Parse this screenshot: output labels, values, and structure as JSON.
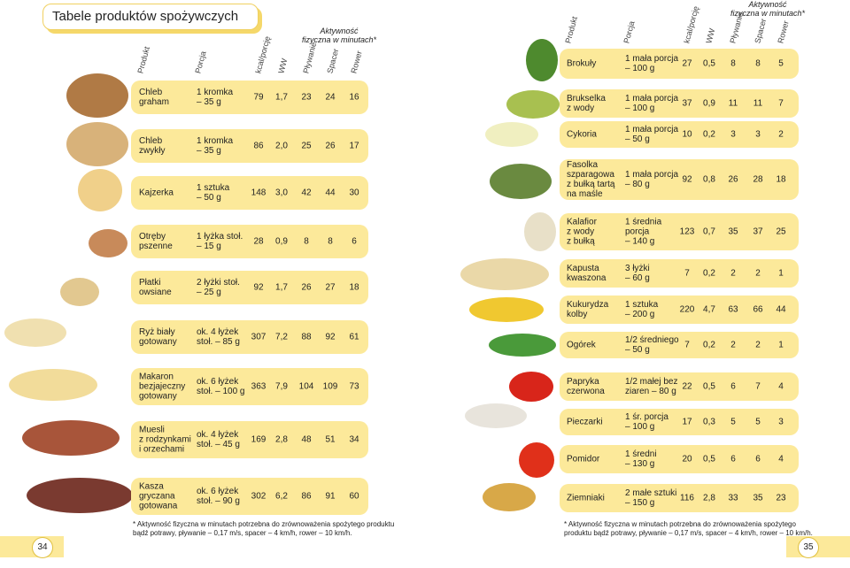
{
  "title": "Tabele produktów spożywczych",
  "activity_header": "Aktywność\nfizyczna w minutach*",
  "left": {
    "headers": [
      "Produkt",
      "Porcja",
      "kcal/porcję",
      "WW",
      "Pływanie",
      "Spacer",
      "Rower"
    ],
    "rows": [
      [
        "Chleb\ngraham",
        "1 kromka\n– 35 g",
        "79",
        "1,7",
        "23",
        "24",
        "16"
      ],
      [
        "Chleb\nzwykły",
        "1 kromka\n– 35 g",
        "86",
        "2,0",
        "25",
        "26",
        "17"
      ],
      [
        "Kajzerka",
        "1 sztuka\n– 50 g",
        "148",
        "3,0",
        "42",
        "44",
        "30"
      ],
      [
        "Otręby\npszenne",
        "1 łyżka stoł.\n– 15 g",
        "28",
        "0,9",
        "8",
        "8",
        "6"
      ],
      [
        "Płatki\nowsiane",
        "2 łyżki stoł.\n– 25 g",
        "92",
        "1,7",
        "26",
        "27",
        "18"
      ],
      [
        "Ryż biały\ngotowany",
        "ok. 4 łyżek\nstoł. – 85 g",
        "307",
        "7,2",
        "88",
        "92",
        "61"
      ],
      [
        "Makaron\nbezjajeczny\ngotowany",
        "ok. 6 łyżek\nstoł. – 100 g",
        "363",
        "7,9",
        "104",
        "109",
        "73"
      ],
      [
        "Muesli\nz rodzynkami\ni orzechami",
        "ok. 4 łyżek\nstoł. – 45 g",
        "169",
        "2,8",
        "48",
        "51",
        "34"
      ],
      [
        "Kasza\ngryczana\ngotowana",
        "ok. 6 łyżek\nstoł. – 90 g",
        "302",
        "6,2",
        "86",
        "91",
        "60"
      ]
    ],
    "footnote": "* Aktywność fizyczna w minutach potrzebna do zrównoważenia spożytego produktu\nbądź potrawy, pływanie – 0,17 m/s, spacer – 4 km/h, rower – 10 km/h.",
    "page_number": "34"
  },
  "right": {
    "headers": [
      "Produkt",
      "Porcja",
      "kcal/porcję",
      "WW",
      "Pływanie",
      "Spacer",
      "Rower"
    ],
    "rows": [
      [
        "Brokuły",
        "1 mała porcja\n– 100 g",
        "27",
        "0,5",
        "8",
        "8",
        "5"
      ],
      [
        "Brukselka\nz wody",
        "1 mała porcja\n– 100 g",
        "37",
        "0,9",
        "11",
        "11",
        "7"
      ],
      [
        "Cykoria",
        "1 mała porcja\n– 50 g",
        "10",
        "0,2",
        "3",
        "3",
        "2"
      ],
      [
        "Fasolka\nszparagowa\nz bułką tartą\nna maśle",
        "1 mała porcja\n– 80 g",
        "92",
        "0,8",
        "26",
        "28",
        "18"
      ],
      [
        "Kalafior\nz wody\nz bułką",
        "1 średnia\nporcja\n– 140 g",
        "123",
        "0,7",
        "35",
        "37",
        "25"
      ],
      [
        "Kapusta\nkwaszona",
        "3 łyżki\n– 60 g",
        "7",
        "0,2",
        "2",
        "2",
        "1"
      ],
      [
        "Kukurydza\nkolby",
        "1 sztuka\n– 200 g",
        "220",
        "4,7",
        "63",
        "66",
        "44"
      ],
      [
        "Ogórek",
        "1/2 średniego\n– 50 g",
        "7",
        "0,2",
        "2",
        "2",
        "1"
      ],
      [
        "Papryka\nczerwona",
        "1/2 małej bez\nziaren – 80 g",
        "22",
        "0,5",
        "6",
        "7",
        "4"
      ],
      [
        "Pieczarki",
        "1 śr. porcja\n– 100 g",
        "17",
        "0,3",
        "5",
        "5",
        "3"
      ],
      [
        "Pomidor",
        "1 średni\n– 130 g",
        "20",
        "0,5",
        "6",
        "6",
        "4"
      ],
      [
        "Ziemniaki",
        "2 małe sztuki\n– 150 g",
        "116",
        "2,8",
        "33",
        "35",
        "23"
      ]
    ],
    "footnote": "* Aktywność fizyczna w minutach potrzebna do zrównoważenia spożytego\nproduktu bądź potrawy, pływanie – 0,17 m/s, spacer – 4 km/h, rower – 10 km/h.",
    "page_number": "35"
  }
}
